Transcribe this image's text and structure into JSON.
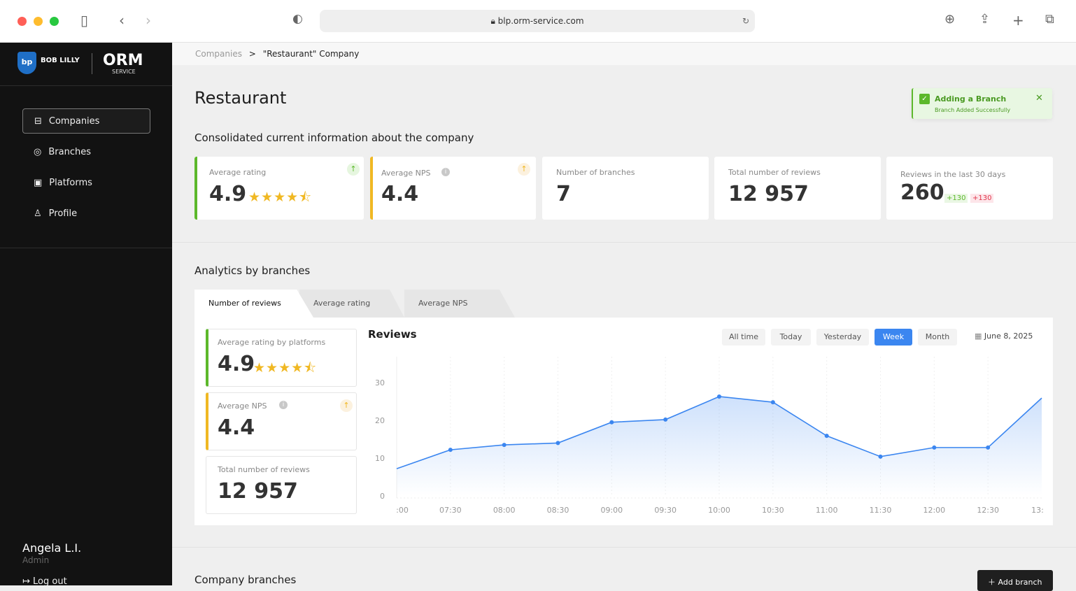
{
  "browser": {
    "url": "blp.orm-service.com"
  },
  "brand": {
    "left_logo": "BOB LILLY PROMOTIONS",
    "right_logo": "ORM",
    "right_sub": "SERVICE"
  },
  "sidebar": {
    "items": [
      {
        "label": "Companies",
        "icon": "briefcase-icon",
        "active": true
      },
      {
        "label": "Branches",
        "icon": "location-pin-icon"
      },
      {
        "label": "Platforms",
        "icon": "platform-icon"
      },
      {
        "label": "Profile",
        "icon": "user-icon"
      }
    ],
    "user": {
      "name": "Angela L.I.",
      "role": "Admin",
      "logout": "Log out"
    }
  },
  "breadcrumb": {
    "root": "Companies",
    "sep": ">",
    "current": "\"Restaurant\" Company"
  },
  "page": {
    "title": "Restaurant",
    "subtitle": "Consolidated current information about the company"
  },
  "toast": {
    "title": "Adding a Branch",
    "message": "Branch Added Successfully",
    "color": "#5cb82b"
  },
  "stats": [
    {
      "label": "Average rating",
      "value": "4.9",
      "stars": 4.5,
      "accent": "#5cb82b"
    },
    {
      "label": "Average NPS",
      "value": "4.4",
      "accent": "#f0b823"
    },
    {
      "label": "Number of branches",
      "value": "7"
    },
    {
      "label": "Total number of reviews",
      "value": "12 957"
    },
    {
      "label": "Reviews in the last 30 days",
      "value": "260",
      "up": "+130",
      "down": "+130"
    }
  ],
  "analytics": {
    "title": "Analytics by branches",
    "tabs": [
      "Number of reviews",
      "Average rating",
      "Average NPS"
    ],
    "side": [
      {
        "label": "Average rating by platforms",
        "value": "4.9",
        "stars": 4.5
      },
      {
        "label": "Average NPS",
        "value": "4.4"
      },
      {
        "label": "Total number of reviews",
        "value": "12 957"
      }
    ],
    "filters": [
      "All time",
      "Today",
      "Yesterday",
      "Week",
      "Month"
    ],
    "active_filter": "Week",
    "date": "June 8, 2025"
  },
  "chart_data": {
    "type": "area",
    "title": "Reviews",
    "x": [
      ":00",
      "07:30",
      "08:00",
      "08:30",
      "09:00",
      "09:30",
      "10:00",
      "10:30",
      "11:00",
      "11:30",
      "12:00",
      "12:30",
      "13:"
    ],
    "values": [
      7.2,
      12.2,
      13.5,
      14,
      19.5,
      20.2,
      26.3,
      24.8,
      15.9,
      10.4,
      12.8,
      12.8,
      25.9
    ],
    "yticks": [
      0,
      10,
      20,
      30
    ],
    "ylim": [
      0,
      37
    ],
    "color": "#3b86f0"
  },
  "branches": {
    "title": "Company branches",
    "add_label": "Add branch"
  }
}
